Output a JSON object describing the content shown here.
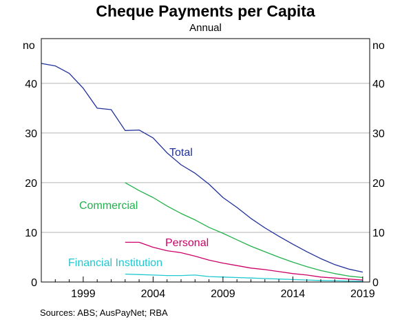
{
  "chart_data": {
    "type": "line",
    "title": "Cheque Payments per Capita",
    "subtitle": "Annual",
    "y_unit_left": "no",
    "y_unit_right": "no",
    "source": "Sources:   ABS; AusPayNet; RBA",
    "xlim": [
      1996,
      2019.5
    ],
    "ylim": [
      0,
      49
    ],
    "x_ticks": [
      1999,
      2004,
      2009,
      2014,
      2019
    ],
    "y_ticks": [
      0,
      10,
      20,
      30,
      40
    ],
    "grid": true,
    "colors": {
      "Total": "#1f2f9a",
      "Commercial": "#22b14c",
      "Personal": "#cc0066",
      "Financial Institution": "#1ec8d0"
    },
    "series": [
      {
        "name": "Total",
        "x": [
          1996,
          1997,
          1998,
          1999,
          2000,
          2001,
          2002,
          2003,
          2004,
          2005,
          2006,
          2007,
          2008,
          2009,
          2010,
          2011,
          2012,
          2013,
          2014,
          2015,
          2016,
          2017,
          2018,
          2019
        ],
        "y": [
          44,
          43.5,
          42,
          39,
          35,
          34.7,
          30.5,
          30.6,
          29,
          26,
          23.6,
          21.9,
          19.7,
          17,
          15,
          12.8,
          10.9,
          9.2,
          7.6,
          6.1,
          4.7,
          3.5,
          2.6,
          2.0
        ]
      },
      {
        "name": "Commercial",
        "x": [
          2002,
          2003,
          2004,
          2005,
          2006,
          2007,
          2008,
          2009,
          2010,
          2011,
          2012,
          2013,
          2014,
          2015,
          2016,
          2017,
          2018,
          2019
        ],
        "y": [
          20,
          18.4,
          17,
          15.3,
          13.8,
          12.5,
          11,
          9.8,
          8.5,
          7.2,
          6.1,
          5.0,
          4.0,
          3.1,
          2.3,
          1.7,
          1.2,
          0.9
        ]
      },
      {
        "name": "Personal",
        "x": [
          2002,
          2003,
          2004,
          2005,
          2006,
          2007,
          2008,
          2009,
          2010,
          2011,
          2012,
          2013,
          2014,
          2015,
          2016,
          2017,
          2018,
          2019
        ],
        "y": [
          8,
          8,
          7,
          6.3,
          5.9,
          5.2,
          4.4,
          3.8,
          3.3,
          2.8,
          2.5,
          2.1,
          1.7,
          1.4,
          1.0,
          0.8,
          0.6,
          0.4
        ]
      },
      {
        "name": "Financial Institution",
        "x": [
          2002,
          2003,
          2004,
          2005,
          2006,
          2007,
          2008,
          2009,
          2010,
          2011,
          2012,
          2013,
          2014,
          2015,
          2016,
          2017,
          2018,
          2019
        ],
        "y": [
          1.6,
          1.5,
          1.4,
          1.3,
          1.3,
          1.4,
          1.1,
          1.0,
          0.9,
          0.8,
          0.7,
          0.6,
          0.5,
          0.4,
          0.3,
          0.25,
          0.2,
          0.15
        ]
      }
    ]
  }
}
